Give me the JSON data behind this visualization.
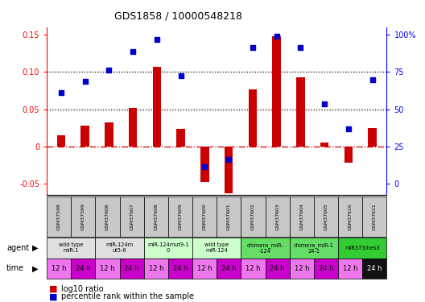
{
  "title": "GDS1858 / 10000548218",
  "samples": [
    "GSM37598",
    "GSM37599",
    "GSM37606",
    "GSM37607",
    "GSM37608",
    "GSM37609",
    "GSM37600",
    "GSM37601",
    "GSM37602",
    "GSM37603",
    "GSM37604",
    "GSM37605",
    "GSM37610",
    "GSM37611"
  ],
  "log10_ratio": [
    0.015,
    0.028,
    0.032,
    0.052,
    0.107,
    0.024,
    -0.048,
    -0.063,
    0.077,
    0.148,
    0.093,
    0.005,
    -0.022,
    0.025
  ],
  "percentile_rank_left": [
    0.072,
    0.087,
    0.102,
    0.127,
    0.143,
    0.095,
    -0.027,
    -0.018,
    0.133,
    0.148,
    0.133,
    0.057,
    0.024,
    0.09
  ],
  "ylim": [
    -0.065,
    0.16
  ],
  "left_ytick_vals": [
    -0.05,
    0.0,
    0.05,
    0.1,
    0.15
  ],
  "left_ytick_labels": [
    "-0.05",
    "0",
    "0.05",
    "0.10",
    "0.15"
  ],
  "right_ytick_pct": [
    0,
    25,
    50,
    75,
    100
  ],
  "right_ytick_labels": [
    "0",
    "25",
    "50",
    "75",
    "100%"
  ],
  "hline_dotted": [
    0.05,
    0.1
  ],
  "bar_color": "#cc0000",
  "dot_color": "#0000cc",
  "zero_line_color": "#cc0000",
  "agent_groups": [
    {
      "label": "wild type\nmiR-1",
      "start": 0,
      "end": 2,
      "color": "#e0e0e0"
    },
    {
      "label": "miR-124m\nut5-6",
      "start": 2,
      "end": 4,
      "color": "#e0e0e0"
    },
    {
      "label": "miR-124mut9-1\n0",
      "start": 4,
      "end": 6,
      "color": "#ccffcc"
    },
    {
      "label": "wild type\nmiR-124",
      "start": 6,
      "end": 8,
      "color": "#ccffcc"
    },
    {
      "label": "chimera_miR-\n-124",
      "start": 8,
      "end": 10,
      "color": "#66dd66"
    },
    {
      "label": "chimera_miR-1\n24-1",
      "start": 10,
      "end": 12,
      "color": "#66dd66"
    },
    {
      "label": "miR373/hes3",
      "start": 12,
      "end": 14,
      "color": "#33cc33"
    }
  ],
  "time_labels": [
    "12 h",
    "24 h",
    "12 h",
    "24 h",
    "12 h",
    "24 h",
    "12 h",
    "24 h",
    "12 h",
    "24 h",
    "12 h",
    "24 h",
    "12 h",
    "24 h"
  ],
  "time_bg_colors": [
    "#ee77ee",
    "#cc00cc",
    "#ee77ee",
    "#cc00cc",
    "#ee77ee",
    "#cc00cc",
    "#ee77ee",
    "#cc00cc",
    "#ee77ee",
    "#cc00cc",
    "#ee77ee",
    "#cc00cc",
    "#ee77ee",
    "#111111"
  ],
  "time_text_colors": [
    "black",
    "black",
    "black",
    "black",
    "black",
    "black",
    "black",
    "black",
    "black",
    "black",
    "black",
    "black",
    "black",
    "white"
  ],
  "sample_box_color": "#c8c8c8",
  "legend_red_label": "log10 ratio",
  "legend_blue_label": "percentile rank within the sample"
}
